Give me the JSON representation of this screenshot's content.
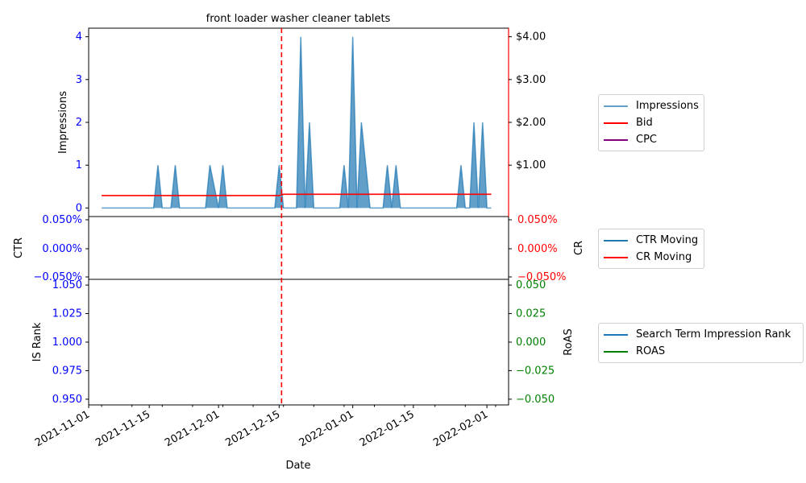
{
  "chart_data": [
    {
      "type": "area",
      "title": "front loader washer cleaner tablets",
      "xlabel": "Date",
      "ylabel": "Impressions",
      "y2label": "",
      "ylim": [
        -0.2,
        4.2
      ],
      "y2lim": [
        0,
        4.2
      ],
      "grid": false,
      "legend": "outside-right",
      "yticks": [
        "0",
        "1",
        "2",
        "3",
        "4"
      ],
      "y2ticks": [
        "$1.00",
        "$2.00",
        "$3.00",
        "$4.00"
      ],
      "y2ticks_values": [
        1,
        2,
        3,
        4
      ],
      "vline_date": "2021-12-15",
      "series": [
        {
          "name": "Impressions",
          "color": "#1f77b4",
          "axis": "left",
          "points": [
            [
              "2021-11-04",
              0
            ],
            [
              "2021-11-16",
              0
            ],
            [
              "2021-11-17",
              1
            ],
            [
              "2021-11-18",
              0
            ],
            [
              "2021-11-20",
              0
            ],
            [
              "2021-11-21",
              1
            ],
            [
              "2021-11-22",
              0
            ],
            [
              "2021-11-28",
              0
            ],
            [
              "2021-11-29",
              1
            ],
            [
              "2021-12-01",
              0
            ],
            [
              "2021-12-02",
              1
            ],
            [
              "2021-12-03",
              0
            ],
            [
              "2021-12-14",
              0
            ],
            [
              "2021-12-15",
              1
            ],
            [
              "2021-12-16",
              0
            ],
            [
              "2021-12-19",
              0
            ],
            [
              "2021-12-20",
              4
            ],
            [
              "2021-12-21",
              0
            ],
            [
              "2021-12-22",
              2
            ],
            [
              "2021-12-23",
              0
            ],
            [
              "2021-12-29",
              0
            ],
            [
              "2021-12-30",
              1
            ],
            [
              "2021-12-31",
              0
            ],
            [
              "2022-01-01",
              4
            ],
            [
              "2022-01-02",
              0
            ],
            [
              "2022-01-03",
              2
            ],
            [
              "2022-01-05",
              0
            ],
            [
              "2022-01-08",
              0
            ],
            [
              "2022-01-09",
              1
            ],
            [
              "2022-01-10",
              0
            ],
            [
              "2022-01-11",
              1
            ],
            [
              "2022-01-12",
              0
            ],
            [
              "2022-01-25",
              0
            ],
            [
              "2022-01-26",
              1
            ],
            [
              "2022-01-27",
              0
            ],
            [
              "2022-01-28",
              0
            ],
            [
              "2022-01-29",
              2
            ],
            [
              "2022-01-30",
              0
            ],
            [
              "2022-01-31",
              2
            ],
            [
              "2022-02-01",
              0
            ],
            [
              "2022-02-02",
              0
            ]
          ]
        },
        {
          "name": "Bid",
          "color": "#ff0000",
          "axis": "right",
          "points": [
            [
              "2021-11-04",
              0.29
            ],
            [
              "2021-12-15",
              0.29
            ],
            [
              "2021-12-16",
              0.32
            ],
            [
              "2022-02-02",
              0.32
            ]
          ]
        },
        {
          "name": "CPC",
          "color": "#800080",
          "axis": "right",
          "points": []
        }
      ]
    },
    {
      "type": "line",
      "title": "",
      "ylabel": "CTR",
      "y2label": "CR",
      "ylim": [
        -0.0005,
        0.0005
      ],
      "yticks": [
        "0.050%",
        "0.000%",
        "−0.050%"
      ],
      "y2ticks": [
        "0.050%",
        "0.000%",
        "−0.050%"
      ],
      "legend": "outside-right",
      "series": [
        {
          "name": "CTR Moving",
          "color": "#1f77b4",
          "values": []
        },
        {
          "name": "CR Moving",
          "color": "#ff0000",
          "values": []
        }
      ]
    },
    {
      "type": "line",
      "title": "",
      "ylabel": "IS Rank",
      "y2label": "RoAS",
      "ylim": [
        0.945,
        1.055
      ],
      "y2lim": [
        -0.055,
        0.055
      ],
      "yticks": [
        "1.050",
        "1.025",
        "1.000",
        "0.975",
        "0.950"
      ],
      "yticks_values": [
        1.05,
        1.025,
        1.0,
        0.975,
        0.95
      ],
      "y2ticks": [
        "0.050",
        "0.025",
        "0.000",
        "−0.025",
        "−0.050"
      ],
      "y2ticks_values": [
        0.05,
        0.025,
        0.0,
        -0.025,
        -0.05
      ],
      "legend": "outside-right",
      "series": [
        {
          "name": "Search Term Impression Rank",
          "color": "#1f77b4",
          "values": []
        },
        {
          "name": "ROAS",
          "color": "#008000",
          "values": []
        }
      ]
    }
  ],
  "x_axis": {
    "xlim": [
      "2021-11-01",
      "2022-02-06"
    ],
    "ticks": [
      "2021-11-01",
      "2021-11-15",
      "2021-12-01",
      "2021-12-15",
      "2022-01-01",
      "2022-01-15",
      "2022-02-01"
    ]
  },
  "colors": {
    "left_tick": "#0000ff",
    "right_tick_top": "#ff0000",
    "right_tick_middle": "#ff0000",
    "right_tick_bottom": "#008000",
    "vline": "#ff0000"
  }
}
